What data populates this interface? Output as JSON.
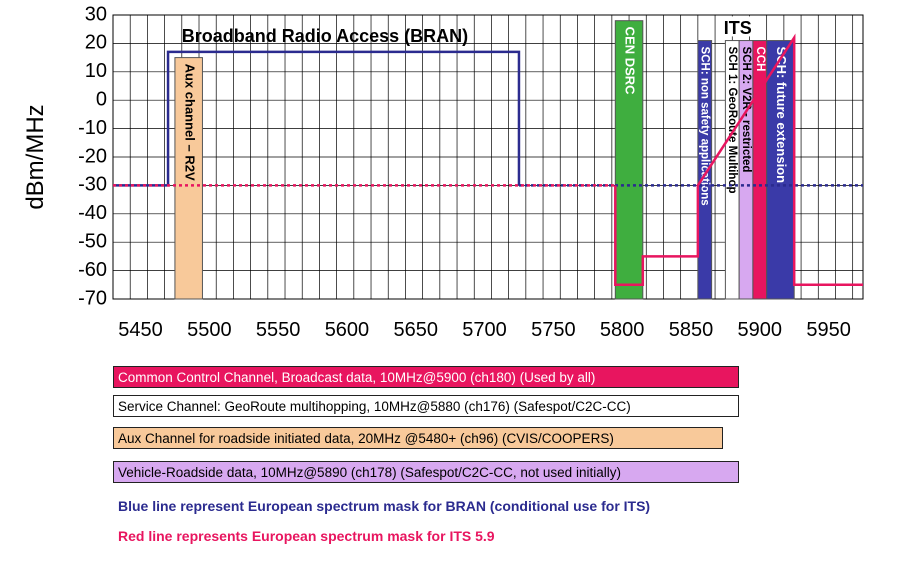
{
  "chart_data": {
    "type": "line",
    "ylabel": "dBm/MHz",
    "xlabel": "",
    "xlim": [
      5430,
      5975
    ],
    "ylim": [
      -70,
      30
    ],
    "x_ticks": [
      5450,
      5500,
      5550,
      5600,
      5650,
      5700,
      5750,
      5800,
      5850,
      5900,
      5950
    ],
    "y_ticks": [
      30,
      20,
      10,
      0,
      -10,
      -20,
      -30,
      -40,
      -50,
      -60,
      -70
    ],
    "grid": true,
    "series": [
      {
        "name": "BRAN",
        "color": "#2b2b8f",
        "style": "solid-then-dotted",
        "x": [
          5430,
          5470,
          5470,
          5725,
          5725,
          5975
        ],
        "y": [
          -30,
          -30,
          17,
          17,
          -30,
          -30
        ]
      },
      {
        "name": "ITS 5.9",
        "color": "#e8155f",
        "style": "dotted-then-solid",
        "x": [
          5430,
          5795,
          5795,
          5815,
          5815,
          5855,
          5855,
          5925,
          5925,
          5975
        ],
        "y": [
          -30,
          -30,
          -65,
          -65,
          -55,
          -55,
          -30,
          22,
          -65,
          -65
        ]
      }
    ],
    "annotations": {
      "bran_label": "Broadband Radio Access (BRAN)",
      "its_label": "ITS"
    },
    "bands": [
      {
        "label": "Aux channel – R2V",
        "x0": 5475,
        "x1": 5495,
        "y0": -70,
        "y1": 15,
        "fill": "#f8c99a",
        "text_color": "#000000"
      },
      {
        "label": "CEN DSRC",
        "x0": 5795,
        "x1": 5815,
        "y0": -70,
        "y1": 28,
        "fill": "#3fae3f",
        "text_color": "#ffffff"
      },
      {
        "label": "SCH: non safety applications",
        "x0": 5855,
        "x1": 5865,
        "y0": -70,
        "y1": 21,
        "fill": "#3a3aa8",
        "text_color": "#ffffff"
      },
      {
        "label": "SCH 1: GeoRoute Multihop",
        "x0": 5875,
        "x1": 5885,
        "y0": -70,
        "y1": 21,
        "fill": "#ffffff",
        "text_color": "#000000"
      },
      {
        "label": "SCH 2: V2R - restricted",
        "x0": 5885,
        "x1": 5895,
        "y0": -70,
        "y1": 21,
        "fill": "#d7a8f0",
        "text_color": "#000000"
      },
      {
        "label": "CCH",
        "x0": 5895,
        "x1": 5905,
        "y0": -70,
        "y1": 21,
        "fill": "#e8155f",
        "text_color": "#ffffff"
      },
      {
        "label": "SCH: future extension",
        "x0": 5905,
        "x1": 5925,
        "y0": -70,
        "y1": 21,
        "fill": "#3a3aa8",
        "text_color": "#ffffff"
      }
    ]
  },
  "legend": {
    "cch": {
      "text": "Common Control Channel, Broadcast data, 10MHz@5900 (ch180) (Used by all)",
      "fill": "#e8155f",
      "text_color": "#ffffff"
    },
    "sch": {
      "text": "Service Channel: GeoRoute multihopping, 10MHz@5880 (ch176) (Safespot/C2C-CC)",
      "fill": "#ffffff",
      "text_color": "#000000"
    },
    "aux": {
      "text": "Aux Channel for roadside initiated data, 20MHz @5480+ (ch96) (CVIS/COOPERS)",
      "fill": "#f8c99a",
      "text_color": "#000000"
    },
    "v2r": {
      "text": "Vehicle-Roadside data, 10MHz@5890 (ch178) (Safespot/C2C-CC, not used initially)",
      "fill": "#d7a8f0",
      "text_color": "#000000"
    }
  },
  "notes": {
    "blue": {
      "text": "Blue line represent European spectrum mask for BRAN (conditional use for ITS)",
      "color": "#2b2b8f"
    },
    "red": {
      "text": "Red line represents European spectrum mask for ITS 5.9",
      "color": "#e8155f"
    }
  }
}
